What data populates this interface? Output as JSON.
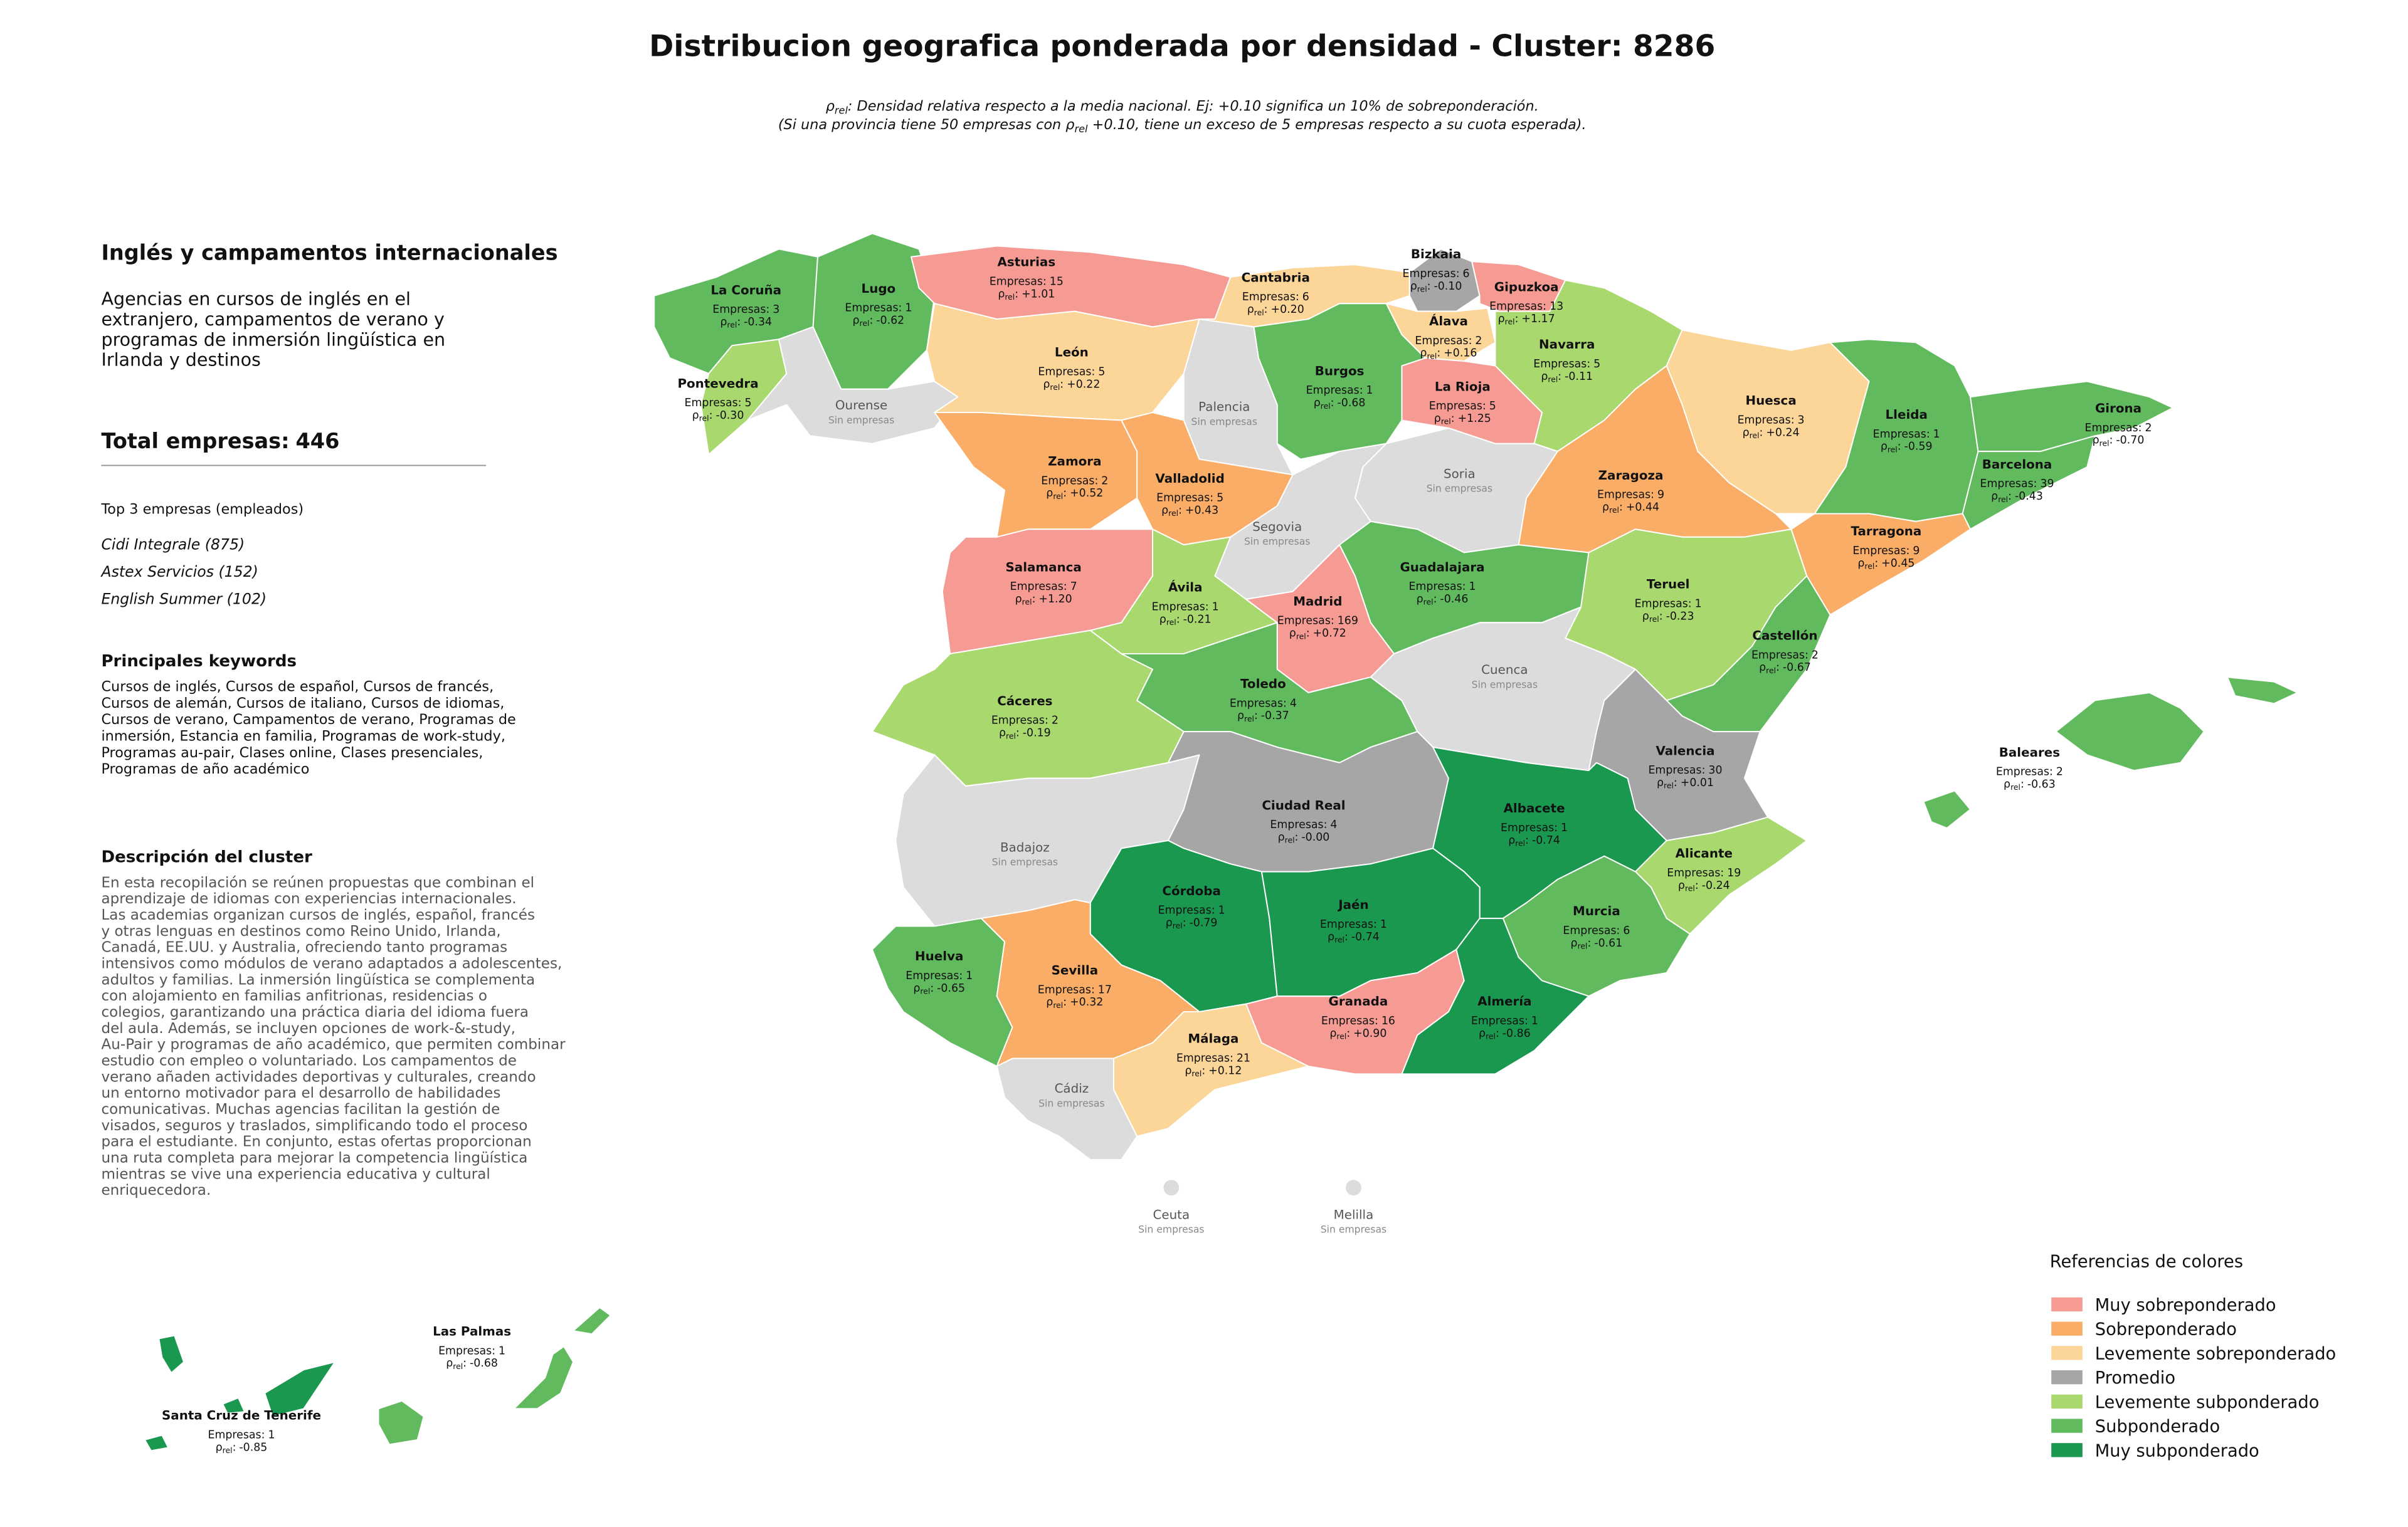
{
  "title": "Distribucion geografica ponderada por densidad - Cluster: 8286",
  "note": [
    {
      "pre": "ρ",
      "sub": "rel",
      "post": ": Densidad relativa respecto a la media nacional. Ej: +0.10 significa un 10% de sobreponderación."
    },
    {
      "pre": "(Si una provincia tiene 50 empresas con ρ",
      "sub": "rel",
      "post": " +0.10, tiene un exceso de 5 empresas respecto a su cuota esperada)."
    }
  ],
  "panel": {
    "heading": "Inglés y campamentos internacionales",
    "summary": [
      "Agencias en cursos de inglés en el",
      "extranjero, campamentos de verano y",
      "programas de inmersión lingüística en",
      "Irlanda y destinos"
    ],
    "total_label": "Total empresas:",
    "total": 446,
    "top_heading": "Top 3 empresas (empleados)",
    "top": [
      "Cidi Integrale (875)",
      "Astex Servicios (152)",
      "English Summer (102)"
    ],
    "keywords_heading": "Principales keywords",
    "keywords": [
      "Cursos de inglés, Cursos de español, Cursos de francés,",
      "Cursos de alemán, Cursos de italiano, Cursos de idiomas,",
      "Cursos de verano, Campamentos de verano, Programas de",
      "inmersión, Estancia en familia, Programas de work-study,",
      "Programas au-pair, Clases online, Clases presenciales,",
      "Programas de año académico"
    ],
    "description_heading": "Descripción del cluster",
    "description": [
      "En esta recopilación se reúnen propuestas que combinan el",
      "aprendizaje de idiomas con experiencias internacionales.",
      "Las academias organizan cursos de inglés, español, francés",
      "y otras lenguas en destinos como Reino Unido, Irlanda,",
      "Canadá, EE.UU. y Australia, ofreciendo tanto programas",
      "intensivos como módulos de verano adaptados a adolescentes,",
      "adultos y familias. La inmersión lingüística se complementa",
      "con alojamiento en familias anfitrionas, residencias o",
      "colegios, garantizando una práctica diaria del idioma fuera",
      "del aula. Además, se incluyen opciones de work-&-study,",
      "Au-Pair y programas de año académico, que permiten combinar",
      "estudio con empleo o voluntariado. Los campamentos de",
      "verano añaden actividades deportivas y culturales, creando",
      "un entorno motivador para el desarrollo de habilidades",
      "comunicativas. Muchas agencias facilitan la gestión de",
      "visados, seguros y traslados, simplificando todo el proceso",
      "para el estudiante. En conjunto, estas ofertas proporcionan",
      "una ruta completa para mejorar la competencia lingüística",
      "mientras se vive una experiencia educativa y cultural",
      "enriquecedora."
    ]
  },
  "map": {
    "empresas_label": "Empresas:",
    "rho_symbol": "ρ",
    "rho_sub": "rel",
    "rho_sep": ":",
    "no_data_label": "Sin empresas",
    "no_data_color": "#dcdcdc",
    "provinces": [
      {
        "name": "La Coruña",
        "empresas": 3,
        "rho": "-0.34",
        "category": "Subponderado"
      },
      {
        "name": "Lugo",
        "empresas": 1,
        "rho": "-0.62",
        "category": "Subponderado"
      },
      {
        "name": "Pontevedra",
        "empresas": 5,
        "rho": "-0.30",
        "category": "Levemente subponderado"
      },
      {
        "name": "Ourense"
      },
      {
        "name": "Asturias",
        "empresas": 15,
        "rho": "+1.01",
        "category": "Muy sobreponderado"
      },
      {
        "name": "León",
        "empresas": 5,
        "rho": "+0.22",
        "category": "Levemente sobreponderado"
      },
      {
        "name": "Cantabria",
        "empresas": 6,
        "rho": "+0.20",
        "category": "Levemente sobreponderado"
      },
      {
        "name": "Bizkaia",
        "empresas": 6,
        "rho": "-0.10",
        "category": "Promedio"
      },
      {
        "name": "Gipuzkoa",
        "empresas": 13,
        "rho": "+1.17",
        "category": "Muy sobreponderado"
      },
      {
        "name": "Álava",
        "empresas": 2,
        "rho": "+0.16",
        "category": "Levemente sobreponderado"
      },
      {
        "name": "Navarra",
        "empresas": 5,
        "rho": "-0.11",
        "category": "Levemente subponderado"
      },
      {
        "name": "La Rioja",
        "empresas": 5,
        "rho": "+1.25",
        "category": "Muy sobreponderado"
      },
      {
        "name": "Burgos",
        "empresas": 1,
        "rho": "-0.68",
        "category": "Subponderado"
      },
      {
        "name": "Palencia"
      },
      {
        "name": "Huesca",
        "empresas": 3,
        "rho": "+0.24",
        "category": "Levemente sobreponderado"
      },
      {
        "name": "Lleida",
        "empresas": 1,
        "rho": "-0.59",
        "category": "Subponderado"
      },
      {
        "name": "Girona",
        "empresas": 2,
        "rho": "-0.70",
        "category": "Subponderado"
      },
      {
        "name": "Barcelona",
        "empresas": 39,
        "rho": "-0.43",
        "category": "Subponderado"
      },
      {
        "name": "Tarragona",
        "empresas": 9,
        "rho": "+0.45",
        "category": "Sobreponderado"
      },
      {
        "name": "Zaragoza",
        "empresas": 9,
        "rho": "+0.44",
        "category": "Sobreponderado"
      },
      {
        "name": "Soria"
      },
      {
        "name": "Zamora",
        "empresas": 2,
        "rho": "+0.52",
        "category": "Sobreponderado"
      },
      {
        "name": "Valladolid",
        "empresas": 5,
        "rho": "+0.43",
        "category": "Sobreponderado"
      },
      {
        "name": "Segovia"
      },
      {
        "name": "Salamanca",
        "empresas": 7,
        "rho": "+1.20",
        "category": "Muy sobreponderado"
      },
      {
        "name": "Ávila",
        "empresas": 1,
        "rho": "-0.21",
        "category": "Levemente subponderado"
      },
      {
        "name": "Guadalajara",
        "empresas": 1,
        "rho": "-0.46",
        "category": "Subponderado"
      },
      {
        "name": "Madrid",
        "empresas": 169,
        "rho": "+0.72",
        "category": "Muy sobreponderado"
      },
      {
        "name": "Teruel",
        "empresas": 1,
        "rho": "-0.23",
        "category": "Levemente subponderado"
      },
      {
        "name": "Castellón",
        "empresas": 2,
        "rho": "-0.67",
        "category": "Subponderado"
      },
      {
        "name": "Cáceres",
        "empresas": 2,
        "rho": "-0.19",
        "category": "Levemente subponderado"
      },
      {
        "name": "Toledo",
        "empresas": 4,
        "rho": "-0.37",
        "category": "Subponderado"
      },
      {
        "name": "Cuenca"
      },
      {
        "name": "Valencia",
        "empresas": 30,
        "rho": "+0.01",
        "category": "Promedio"
      },
      {
        "name": "Baleares",
        "empresas": 2,
        "rho": "-0.63",
        "category": "Subponderado"
      },
      {
        "name": "Badajoz"
      },
      {
        "name": "Ciudad Real",
        "empresas": 4,
        "rho": "-0.00",
        "category": "Promedio"
      },
      {
        "name": "Albacete",
        "empresas": 1,
        "rho": "-0.74",
        "category": "Muy subponderado"
      },
      {
        "name": "Alicante",
        "empresas": 19,
        "rho": "-0.24",
        "category": "Levemente subponderado"
      },
      {
        "name": "Córdoba",
        "empresas": 1,
        "rho": "-0.79",
        "category": "Muy subponderado"
      },
      {
        "name": "Jaén",
        "empresas": 1,
        "rho": "-0.74",
        "category": "Muy subponderado"
      },
      {
        "name": "Murcia",
        "empresas": 6,
        "rho": "-0.61",
        "category": "Subponderado"
      },
      {
        "name": "Huelva",
        "empresas": 1,
        "rho": "-0.65",
        "category": "Subponderado"
      },
      {
        "name": "Sevilla",
        "empresas": 17,
        "rho": "+0.32",
        "category": "Sobreponderado"
      },
      {
        "name": "Granada",
        "empresas": 16,
        "rho": "+0.90",
        "category": "Muy sobreponderado"
      },
      {
        "name": "Almería",
        "empresas": 1,
        "rho": "-0.86",
        "category": "Muy subponderado"
      },
      {
        "name": "Málaga",
        "empresas": 21,
        "rho": "+0.12",
        "category": "Levemente sobreponderado"
      },
      {
        "name": "Cádiz"
      },
      {
        "name": "Ceuta"
      },
      {
        "name": "Melilla"
      },
      {
        "name": "Las Palmas",
        "empresas": 1,
        "rho": "-0.68",
        "category": "Subponderado"
      },
      {
        "name": "Santa Cruz de Tenerife",
        "empresas": 1,
        "rho": "-0.85",
        "category": "Muy subponderado"
      }
    ]
  },
  "legend": {
    "title": "Referencias de colores",
    "items": [
      {
        "name": "Muy sobreponderado",
        "color": "#f69b94"
      },
      {
        "name": "Sobreponderado",
        "color": "#f9ad66"
      },
      {
        "name": "Levemente sobreponderado",
        "color": "#fcd598"
      },
      {
        "name": "Promedio",
        "color": "#a6a6a6"
      },
      {
        "name": "Levemente subponderado",
        "color": "#a8d86e"
      },
      {
        "name": "Subponderado",
        "color": "#62ba5f"
      },
      {
        "name": "Muy subponderado",
        "color": "#1a9850"
      }
    ]
  }
}
